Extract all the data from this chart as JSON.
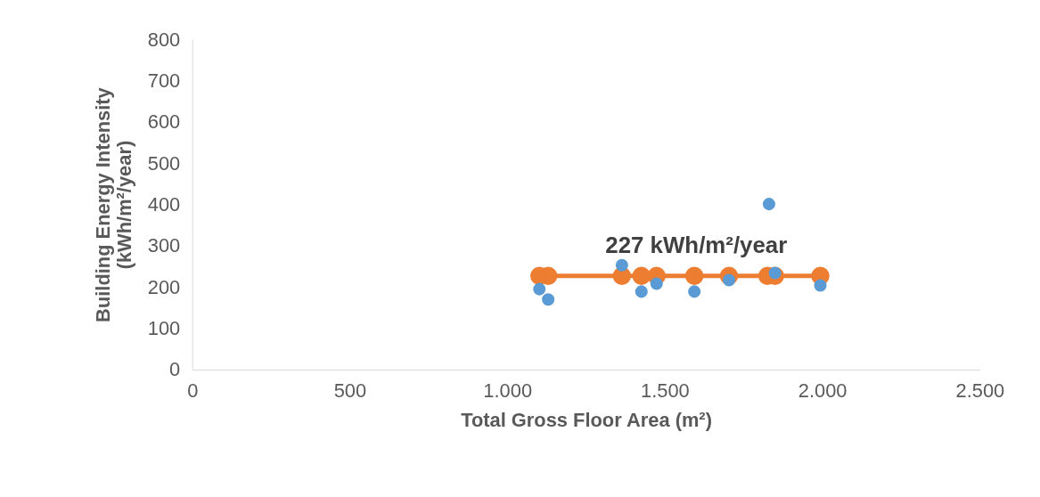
{
  "chart_data": {
    "type": "scatter",
    "xlabel": "Total Gross Floor Area (m²)",
    "ylabel": "Building Energy Intensity (kWh/m²/year)",
    "xlim": [
      0,
      2500
    ],
    "ylim": [
      0,
      800
    ],
    "xticks": [
      0,
      500,
      {
        "value": 1000,
        "label": "1.000"
      },
      {
        "value": 1500,
        "label": "1.500"
      },
      {
        "value": 2000,
        "label": "2.000"
      },
      {
        "value": 2500,
        "label": "2.500"
      }
    ],
    "yticks": [
      0,
      100,
      200,
      300,
      400,
      500,
      600,
      700,
      800
    ],
    "grid": false,
    "marker": "circle",
    "series": [
      {
        "color": "#5b9bd5",
        "x": [
          1102,
          1130,
          1364,
          1426,
          1474,
          1594,
          1704,
          1831,
          1850,
          1994
        ],
        "values": [
          195,
          170,
          253,
          189,
          208,
          189,
          217,
          401,
          234,
          204
        ]
      },
      {
        "type": "line",
        "color": "#ed7d31",
        "line_style": "solid",
        "x": [
          1102,
          1130,
          1364,
          1426,
          1474,
          1594,
          1704,
          1826,
          1850,
          1994
        ],
        "values": [
          227,
          227,
          227,
          227,
          227,
          227,
          227,
          227,
          227,
          227
        ]
      }
    ],
    "annotations": [
      {
        "text": "227 kWh/m²/year",
        "x": 1600,
        "y": 227
      }
    ]
  }
}
